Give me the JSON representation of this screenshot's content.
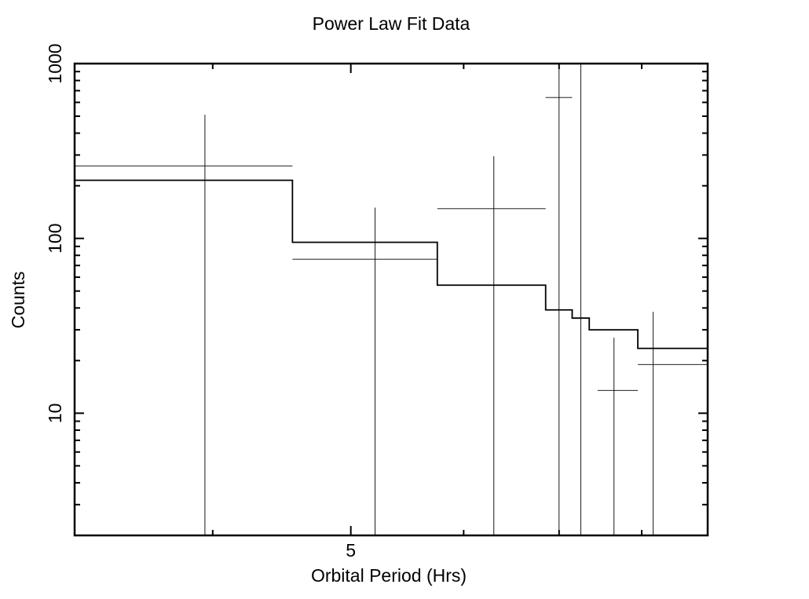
{
  "chart_data": {
    "type": "line",
    "title": "Power Law Fit Data",
    "xlabel": "Orbital Period (Hrs)",
    "ylabel": "Counts",
    "xscale": "log",
    "yscale": "log",
    "xlim": [
      3.2,
      8.9
    ],
    "ylim": [
      2,
      1000
    ],
    "x_ticks": [
      {
        "value": 5,
        "label": "5"
      }
    ],
    "y_ticks": [
      {
        "value": 10,
        "label": "10"
      },
      {
        "value": 100,
        "label": "100"
      },
      {
        "value": 1000,
        "label": "1000"
      }
    ],
    "grid": false,
    "series": [
      {
        "style": "error-crosses",
        "points": [
          {
            "x": 3.95,
            "x_lo": 3.2,
            "x_hi": 4.55,
            "y": 260,
            "y_lo": 2,
            "y_hi": 510
          },
          {
            "x": 5.2,
            "x_lo": 4.55,
            "x_hi": 5.75,
            "y": 76,
            "y_lo": 2,
            "y_hi": 150
          },
          {
            "x": 6.3,
            "x_lo": 5.75,
            "x_hi": 6.85,
            "y": 148,
            "y_lo": 2,
            "y_hi": 295
          },
          {
            "x": 7.0,
            "x_lo": 6.85,
            "x_hi": 7.15,
            "y": 640,
            "y_lo": 2,
            "y_hi": 1000
          },
          {
            "x": 7.65,
            "x_lo": 7.45,
            "x_hi": 7.95,
            "y": 13.5,
            "y_lo": 2,
            "y_hi": 27
          },
          {
            "x": 8.15,
            "x_lo": 7.95,
            "x_hi": 8.9,
            "y": 19,
            "y_lo": 2,
            "y_hi": 38
          },
          {
            "x": 7.25,
            "x_lo": 7.25,
            "x_hi": 7.25,
            "y": 1000,
            "y_lo": 2,
            "y_hi": 1000
          }
        ]
      },
      {
        "style": "step-model",
        "steps": [
          {
            "x_lo": 3.2,
            "x_hi": 4.55,
            "y": 215
          },
          {
            "x_lo": 4.55,
            "x_hi": 5.75,
            "y": 95
          },
          {
            "x_lo": 5.75,
            "x_hi": 6.85,
            "y": 54
          },
          {
            "x_lo": 6.85,
            "x_hi": 7.15,
            "y": 39
          },
          {
            "x_lo": 7.15,
            "x_hi": 7.35,
            "y": 35
          },
          {
            "x_lo": 7.35,
            "x_hi": 7.95,
            "y": 30
          },
          {
            "x_lo": 7.95,
            "x_hi": 8.9,
            "y": 23.5
          }
        ]
      }
    ]
  }
}
